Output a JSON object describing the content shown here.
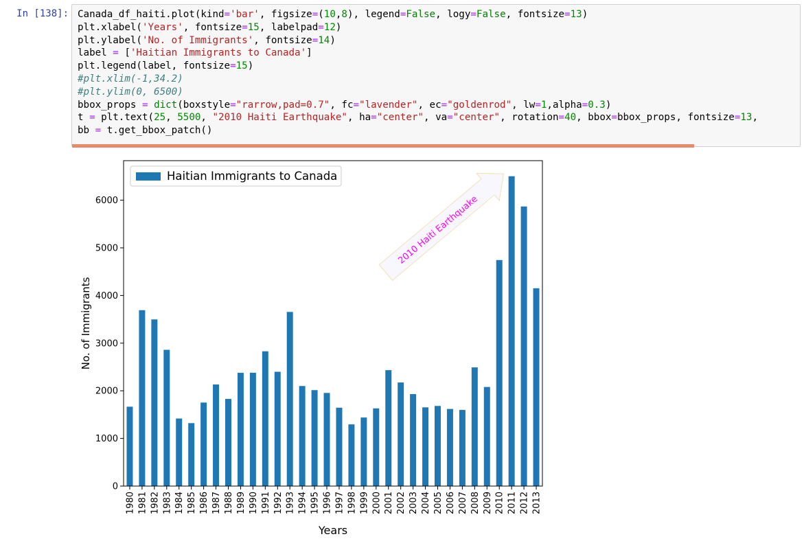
{
  "cell": {
    "prompt": "In [138]:",
    "code_lines": [
      [
        {
          "t": "Canada_df_haiti.plot(kind",
          "c": ""
        },
        {
          "t": "=",
          "c": "eq"
        },
        {
          "t": "'bar'",
          "c": "str"
        },
        {
          "t": ", figsize",
          "c": ""
        },
        {
          "t": "=",
          "c": "eq"
        },
        {
          "t": "(",
          "c": ""
        },
        {
          "t": "10",
          "c": "num"
        },
        {
          "t": ",",
          "c": ""
        },
        {
          "t": "8",
          "c": "num"
        },
        {
          "t": "), legend",
          "c": ""
        },
        {
          "t": "=",
          "c": "eq"
        },
        {
          "t": "False",
          "c": "kw"
        },
        {
          "t": ", logy",
          "c": ""
        },
        {
          "t": "=",
          "c": "eq"
        },
        {
          "t": "False",
          "c": "kw"
        },
        {
          "t": ", fontsize",
          "c": ""
        },
        {
          "t": "=",
          "c": "eq"
        },
        {
          "t": "13",
          "c": "num"
        },
        {
          "t": ")",
          "c": ""
        }
      ],
      [
        {
          "t": "plt.xlabel(",
          "c": ""
        },
        {
          "t": "'Years'",
          "c": "str"
        },
        {
          "t": ", fontsize",
          "c": ""
        },
        {
          "t": "=",
          "c": "eq"
        },
        {
          "t": "15",
          "c": "num"
        },
        {
          "t": ", labelpad",
          "c": ""
        },
        {
          "t": "=",
          "c": "eq"
        },
        {
          "t": "12",
          "c": "num"
        },
        {
          "t": ")",
          "c": ""
        }
      ],
      [
        {
          "t": "plt.ylabel(",
          "c": ""
        },
        {
          "t": "'No. of Immigrants'",
          "c": "str"
        },
        {
          "t": ", fontsize",
          "c": ""
        },
        {
          "t": "=",
          "c": "eq"
        },
        {
          "t": "14",
          "c": "num"
        },
        {
          "t": ")",
          "c": ""
        }
      ],
      [
        {
          "t": "label ",
          "c": ""
        },
        {
          "t": "=",
          "c": "eq"
        },
        {
          "t": " [",
          "c": ""
        },
        {
          "t": "'Haitian Immigrants to Canada'",
          "c": "str"
        },
        {
          "t": "]",
          "c": ""
        }
      ],
      [
        {
          "t": "plt.legend(label, fontsize",
          "c": ""
        },
        {
          "t": "=",
          "c": "eq"
        },
        {
          "t": "15",
          "c": "num"
        },
        {
          "t": ")",
          "c": ""
        }
      ],
      [
        {
          "t": "#plt.xlim(-1,34.2)",
          "c": "cmt"
        }
      ],
      [
        {
          "t": "#plt.ylim(0, 6500)",
          "c": "cmt"
        }
      ],
      [
        {
          "t": "bbox_props ",
          "c": ""
        },
        {
          "t": "=",
          "c": "eq"
        },
        {
          "t": " ",
          "c": ""
        },
        {
          "t": "dict",
          "c": "kw"
        },
        {
          "t": "(boxstyle",
          "c": ""
        },
        {
          "t": "=",
          "c": "eq"
        },
        {
          "t": "\"rarrow,pad=0.7\"",
          "c": "str"
        },
        {
          "t": ", fc",
          "c": ""
        },
        {
          "t": "=",
          "c": "eq"
        },
        {
          "t": "\"lavender\"",
          "c": "str"
        },
        {
          "t": ", ec",
          "c": ""
        },
        {
          "t": "=",
          "c": "eq"
        },
        {
          "t": "\"goldenrod\"",
          "c": "str"
        },
        {
          "t": ", lw",
          "c": ""
        },
        {
          "t": "=",
          "c": "eq"
        },
        {
          "t": "1",
          "c": "num"
        },
        {
          "t": ",alpha",
          "c": ""
        },
        {
          "t": "=",
          "c": "eq"
        },
        {
          "t": "0.3",
          "c": "num"
        },
        {
          "t": ")",
          "c": ""
        }
      ],
      [
        {
          "t": "t ",
          "c": ""
        },
        {
          "t": "=",
          "c": "eq"
        },
        {
          "t": " plt.text(",
          "c": ""
        },
        {
          "t": "25",
          "c": "num"
        },
        {
          "t": ", ",
          "c": ""
        },
        {
          "t": "5500",
          "c": "num"
        },
        {
          "t": ", ",
          "c": ""
        },
        {
          "t": "\"2010 Haiti Earthquake\"",
          "c": "str"
        },
        {
          "t": ", ha",
          "c": ""
        },
        {
          "t": "=",
          "c": "eq"
        },
        {
          "t": "\"center\"",
          "c": "str"
        },
        {
          "t": ", va",
          "c": ""
        },
        {
          "t": "=",
          "c": "eq"
        },
        {
          "t": "\"center\"",
          "c": "str"
        },
        {
          "t": ", rotation",
          "c": ""
        },
        {
          "t": "=",
          "c": "eq"
        },
        {
          "t": "40",
          "c": "num"
        },
        {
          "t": ", bbox",
          "c": ""
        },
        {
          "t": "=",
          "c": "eq"
        },
        {
          "t": "bbox_props, fontsize",
          "c": ""
        },
        {
          "t": "=",
          "c": "eq"
        },
        {
          "t": "13",
          "c": "num"
        },
        {
          "t": ",",
          "c": ""
        }
      ],
      [
        {
          "t": "bb ",
          "c": ""
        },
        {
          "t": "=",
          "c": "eq"
        },
        {
          "t": " t.get_bbox_patch()",
          "c": ""
        }
      ]
    ]
  },
  "colors": {
    "bar": "#1f77b4",
    "annotation_text": "#ff00ff",
    "annotation_fill": "#e6e6fa",
    "annotation_edge": "#daa520",
    "scrollbar": "#e88b6a"
  },
  "chart_data": {
    "type": "bar",
    "xlabel": "Years",
    "ylabel": "No. of Immigrants",
    "legend": [
      "Haitian Immigrants to Canada"
    ],
    "legend_loc": "upper-left",
    "categories": [
      "1980",
      "1981",
      "1982",
      "1983",
      "1984",
      "1985",
      "1986",
      "1987",
      "1988",
      "1989",
      "1990",
      "1991",
      "1992",
      "1993",
      "1994",
      "1995",
      "1996",
      "1997",
      "1998",
      "1999",
      "2000",
      "2001",
      "2002",
      "2003",
      "2004",
      "2005",
      "2006",
      "2007",
      "2008",
      "2009",
      "2010",
      "2011",
      "2012",
      "2013"
    ],
    "values": [
      1666,
      3692,
      3498,
      2860,
      1418,
      1321,
      1753,
      2132,
      1829,
      2377,
      2379,
      2829,
      2399,
      3655,
      2100,
      2014,
      1955,
      1645,
      1295,
      1439,
      1631,
      2433,
      2174,
      1930,
      1652,
      1682,
      1619,
      1598,
      2491,
      2080,
      4744,
      6503,
      5868,
      4152
    ],
    "yticks": [
      0,
      1000,
      2000,
      3000,
      4000,
      5000,
      6000
    ],
    "ylim": [
      0,
      6830
    ],
    "annotation": {
      "text": "2010 Haiti Earthquake",
      "x_index": 25,
      "y": 5500,
      "rotation": 40
    }
  }
}
